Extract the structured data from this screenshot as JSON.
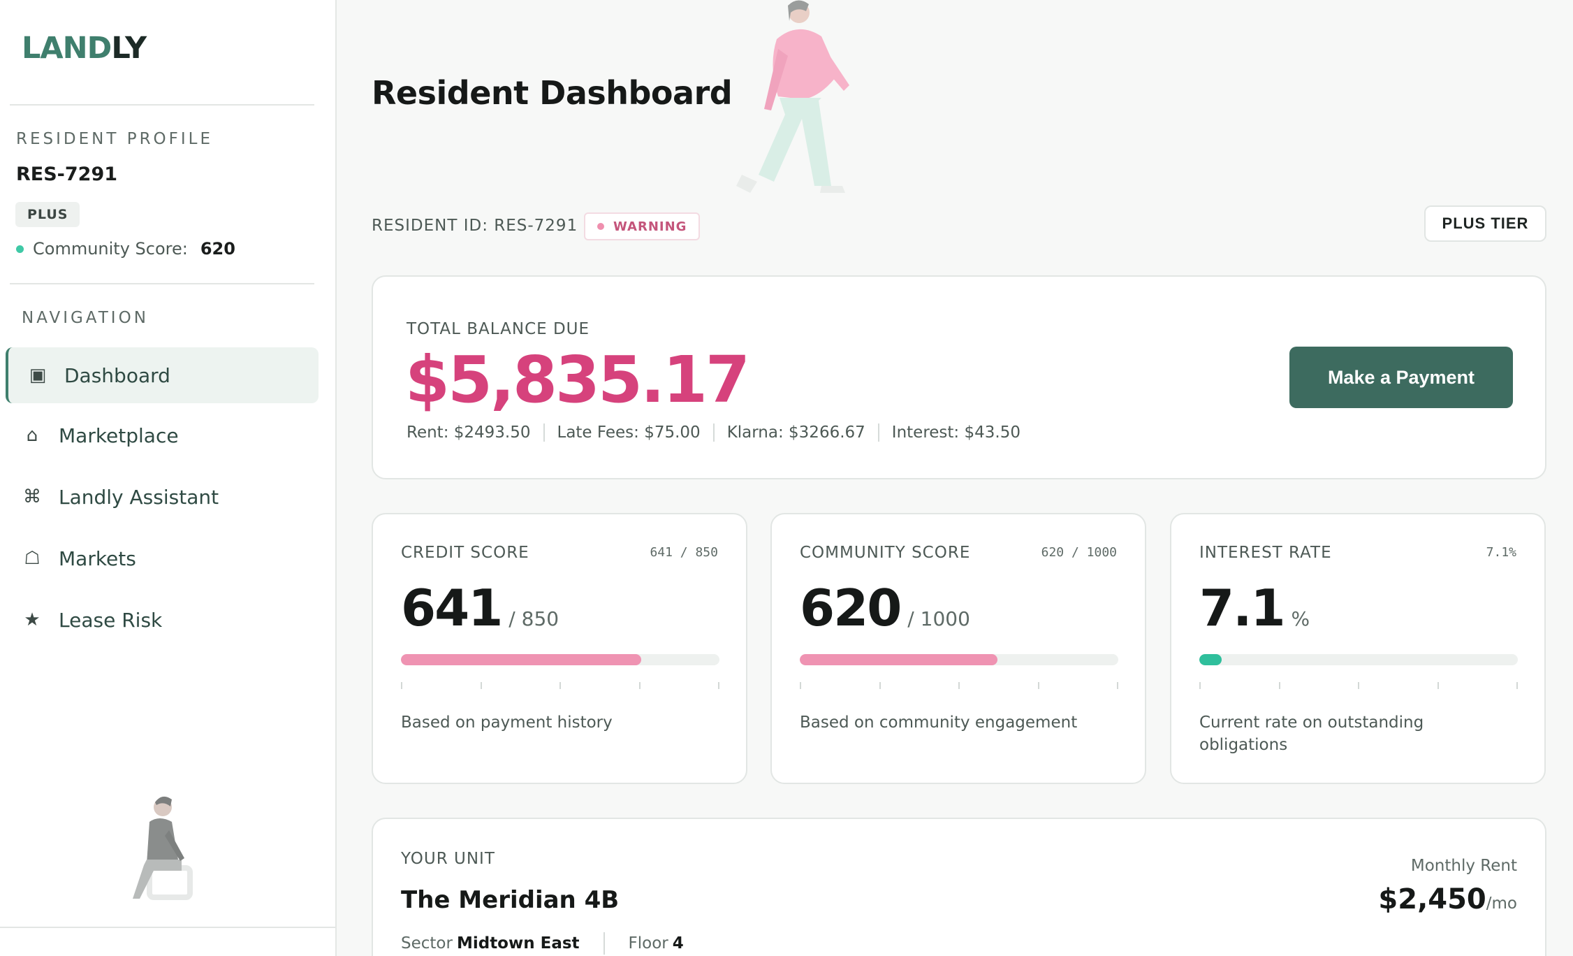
{
  "brand": {
    "logo_part1": "LAND",
    "logo_part2": "LY"
  },
  "sidebar": {
    "profile_section_label": "RESIDENT PROFILE",
    "resident_id": "RES-7291",
    "tier_badge": "PLUS",
    "community_score_label": "Community Score:",
    "community_score_value": "620",
    "nav_section_label": "NAVIGATION",
    "nav_items": [
      {
        "label": "Dashboard",
        "icon": "dashboard-icon",
        "glyph": "▣",
        "active": true
      },
      {
        "label": "Marketplace",
        "icon": "home-icon",
        "glyph": "⌂",
        "active": false
      },
      {
        "label": "Landly Assistant",
        "icon": "command-icon",
        "glyph": "⌘",
        "active": false
      },
      {
        "label": "Markets",
        "icon": "bag-icon",
        "glyph": "☖",
        "active": false
      },
      {
        "label": "Lease Risk",
        "icon": "star-icon",
        "glyph": "★",
        "active": false
      }
    ]
  },
  "header": {
    "title": "Resident Dashboard",
    "resident_id_line": "RESIDENT ID: RES-7291",
    "status_badge": "WARNING",
    "tier_button": "PLUS TIER"
  },
  "balance": {
    "label": "TOTAL BALANCE DUE",
    "amount": "$5,835.17",
    "rent": "Rent: $2493.50",
    "late_fees": "Late Fees: $75.00",
    "klarna": "Klarna: $3266.67",
    "interest": "Interest: $43.50",
    "pay_button": "Make a Payment"
  },
  "metrics": [
    {
      "title": "CREDIT SCORE",
      "corner": "641 / 850",
      "value": "641",
      "suffix": "/ 850",
      "progress": 0.754,
      "bar_color": "#ef93b2",
      "description": "Based on payment history"
    },
    {
      "title": "COMMUNITY SCORE",
      "corner": "620 / 1000",
      "value": "620",
      "suffix": "/ 1000",
      "progress": 0.62,
      "bar_color": "#ef93b2",
      "description": "Based on community engagement"
    },
    {
      "title": "INTEREST RATE",
      "corner": "7.1%",
      "value": "7.1",
      "suffix": "%",
      "progress": 0.071,
      "bar_color": "#2fbf9c",
      "description": "Current rate on outstanding obligations"
    }
  ],
  "unit": {
    "label": "YOUR UNIT",
    "name": "The Meridian 4B",
    "sector_label": "Sector",
    "sector_value": "Midtown East",
    "floor_label": "Floor",
    "floor_value": "4",
    "rent_label": "Monthly Rent",
    "rent_value": "$2,450",
    "rent_unit": "/mo"
  },
  "colors": {
    "accent": "#3f7f6d",
    "balance": "#d6427c",
    "warning": "#c4557b"
  }
}
